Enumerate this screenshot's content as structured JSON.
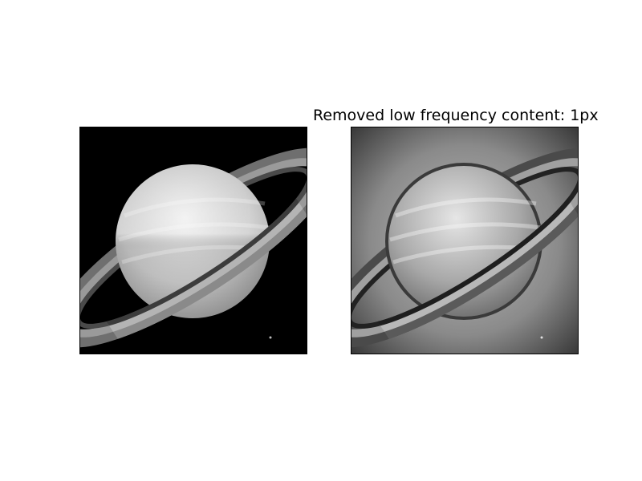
{
  "figure": {
    "left_panel": {
      "title": "",
      "image_description_icon": "saturn-image"
    },
    "right_panel": {
      "title": "Removed low frequency content: 1px",
      "image_description_icon": "saturn-highpass-image"
    }
  },
  "colors": {
    "background": "#ffffff",
    "frame": "#000000"
  }
}
